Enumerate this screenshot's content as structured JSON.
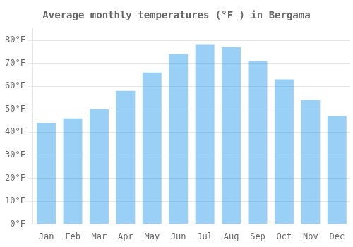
{
  "chart_data": {
    "type": "bar",
    "title": "Average monthly temperatures (°F ) in Bergama",
    "categories": [
      "Jan",
      "Feb",
      "Mar",
      "Apr",
      "May",
      "Jun",
      "Jul",
      "Aug",
      "Sep",
      "Oct",
      "Nov",
      "Dec"
    ],
    "values": [
      44,
      46,
      50,
      58,
      66,
      74,
      78,
      77,
      71,
      63,
      54,
      47
    ],
    "ylim": [
      0,
      85
    ],
    "yticks": [
      {
        "value": 0,
        "label": "0°F"
      },
      {
        "value": 10,
        "label": "10°F"
      },
      {
        "value": 20,
        "label": "20°F"
      },
      {
        "value": 30,
        "label": "30°F"
      },
      {
        "value": 40,
        "label": "40°F"
      },
      {
        "value": 50,
        "label": "50°F"
      },
      {
        "value": 60,
        "label": "60°F"
      },
      {
        "value": 70,
        "label": "70°F"
      },
      {
        "value": 80,
        "label": "80°F"
      }
    ],
    "grid": true
  }
}
